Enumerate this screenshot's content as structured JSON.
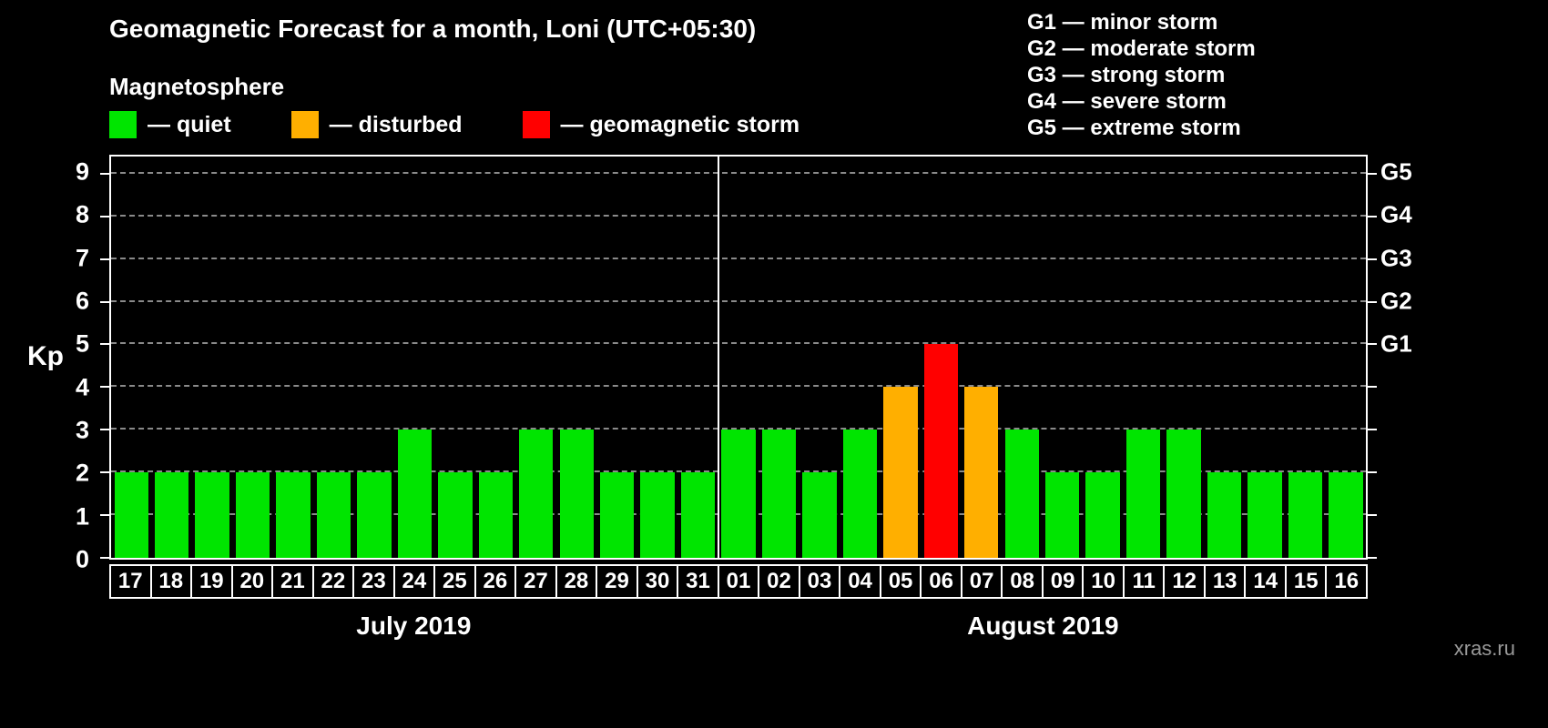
{
  "header": {
    "title": "Geomagnetic Forecast for a month, Loni (UTC+05:30)",
    "subtitle": "Magnetosphere"
  },
  "legend": {
    "items": [
      {
        "name": "quiet",
        "label": "— quiet",
        "color": "#00e500"
      },
      {
        "name": "disturbed",
        "label": "— disturbed",
        "color": "#ffaf00"
      },
      {
        "name": "storm",
        "label": "— geomagnetic storm",
        "color": "#ff0000"
      }
    ]
  },
  "g_scale_legend": [
    "G1 — minor storm",
    "G2 — moderate storm",
    "G3 — strong storm",
    "G4 — severe storm",
    "G5 — extreme storm"
  ],
  "chart_data": {
    "type": "bar",
    "title": "Geomagnetic Forecast for a month, Loni (UTC+05:30)",
    "ylabel": "Kp",
    "ylim": [
      0,
      9.4
    ],
    "yticks": [
      0,
      1,
      2,
      3,
      4,
      5,
      6,
      7,
      8,
      9
    ],
    "grid": "dashed horizontal",
    "right_axis": [
      {
        "label": "G1",
        "value": 5
      },
      {
        "label": "G2",
        "value": 6
      },
      {
        "label": "G3",
        "value": 7
      },
      {
        "label": "G4",
        "value": 8
      },
      {
        "label": "G5",
        "value": 9
      }
    ],
    "months": [
      {
        "label": "July 2019",
        "days": [
          "17",
          "18",
          "19",
          "20",
          "21",
          "22",
          "23",
          "24",
          "25",
          "26",
          "27",
          "28",
          "29",
          "30",
          "31"
        ],
        "values": [
          2,
          2,
          2,
          2,
          2,
          2,
          2,
          3,
          2,
          2,
          3,
          3,
          2,
          2,
          2
        ]
      },
      {
        "label": "August 2019",
        "days": [
          "01",
          "02",
          "03",
          "04",
          "05",
          "06",
          "07",
          "08",
          "09",
          "10",
          "11",
          "12",
          "13",
          "14",
          "15",
          "16"
        ],
        "values": [
          3,
          3,
          2,
          3,
          4,
          5,
          4,
          3,
          2,
          2,
          3,
          3,
          2,
          2,
          2,
          2
        ]
      }
    ],
    "colors": {
      "quiet": "#00e500",
      "disturbed": "#ffaf00",
      "storm": "#ff0000"
    }
  },
  "watermark": "xras.ru"
}
